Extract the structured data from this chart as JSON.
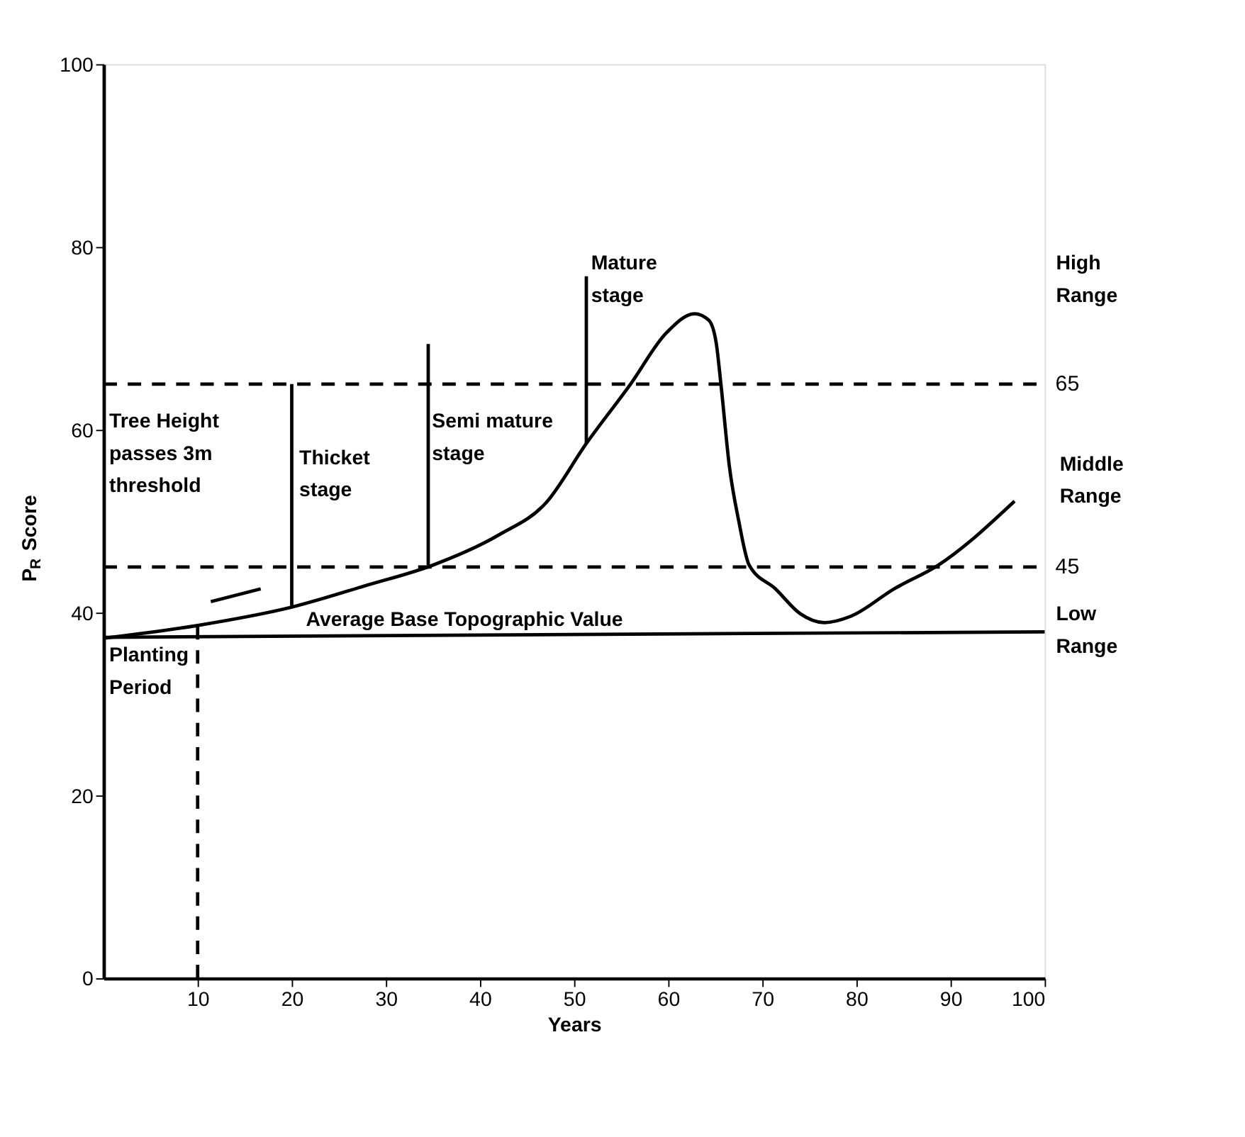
{
  "chart_data": {
    "type": "line",
    "xlabel": "Years",
    "ylabel": "P$_{R}$ Score",
    "xlim": [
      0,
      100
    ],
    "xticks": [
      10,
      20,
      30,
      40,
      50,
      60,
      70,
      80,
      90,
      100
    ],
    "ylim": [
      0,
      100
    ],
    "yticks": [
      0,
      20,
      40,
      60,
      80,
      100
    ],
    "series": [
      {
        "color": "#000000",
        "line_style": "solid",
        "x": [
          0,
          10,
          20,
          28,
          35,
          42,
          47,
          51.3,
          56,
          59.8,
          62.8,
          64.3,
          65.1,
          65.6,
          66.5,
          67.5,
          68.6,
          71.4,
          74,
          76.6,
          79.4,
          84,
          88.7,
          96.8
        ],
        "values": [
          37.2,
          38.6,
          40.6,
          43,
          45.2,
          48.5,
          52,
          58.5,
          65,
          70.6,
          72.7,
          72,
          69.5,
          65,
          56,
          50,
          45.2,
          42.6,
          39.9,
          38.9,
          39.6,
          42.6,
          45.2,
          52.2
        ]
      },
      {
        "color": "#000000",
        "line_style": "solid",
        "x": [
          0,
          100
        ],
        "values": [
          37.3,
          37.9
        ]
      },
      {
        "color": "#000000",
        "line_style": "dashed",
        "x": [
          10,
          10
        ],
        "values": [
          0,
          38.6
        ]
      },
      {
        "color": "#000000",
        "line_style": "solid",
        "x": [
          20,
          20
        ],
        "values": [
          40.6,
          65
        ]
      },
      {
        "color": "#000000",
        "line_style": "solid",
        "x": [
          34.5,
          34.5
        ],
        "values": [
          45.2,
          69.4
        ]
      },
      {
        "color": "#000000",
        "line_style": "solid",
        "x": [
          51.3,
          51.3
        ],
        "values": [
          58.5,
          76.8
        ]
      },
      {
        "color": "#000000",
        "line_style": "solid",
        "x": [
          11.4,
          16.7
        ],
        "values": [
          41.2,
          42.6
        ]
      }
    ],
    "ref_lines": [
      {
        "axis": "y",
        "value": 65,
        "label": "65",
        "color": "#000000",
        "line_style": "dashed"
      },
      {
        "axis": "y",
        "value": 45,
        "label": "45",
        "color": "#000000",
        "line_style": "dashed"
      }
    ],
    "annotations": [
      "Tree Height\npasses  3m\nthreshold",
      "Thicket\nstage",
      "Semi mature\nstage",
      "Mature\nstage",
      "High\nRange",
      "Middle\nRange",
      "Low\nRange",
      "Average Base Topographic Value",
      "Planting\nPeriod"
    ]
  }
}
